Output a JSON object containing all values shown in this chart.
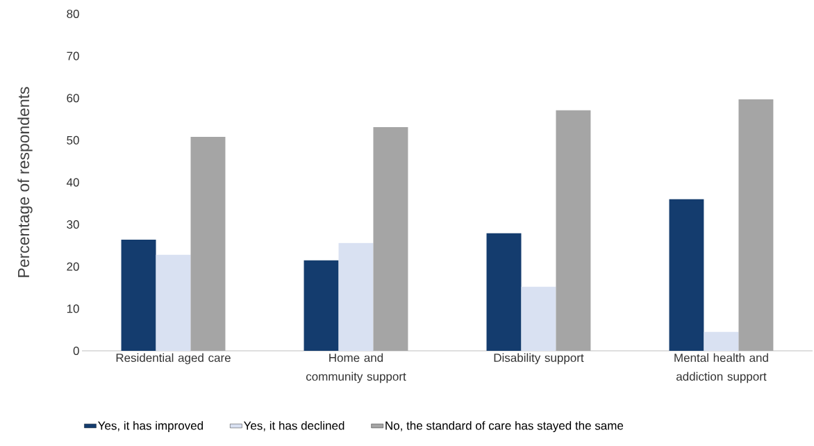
{
  "chart_data": {
    "type": "bar",
    "ylabel": "Percentage of respondents",
    "categories": [
      "Residential aged care",
      "Home and community support",
      "Disability support",
      "Mental health and addiction support"
    ],
    "series": [
      {
        "name": "Yes, it has improved",
        "color": "#143c6e",
        "values": [
          26.4,
          21.5,
          27.9,
          36.0
        ]
      },
      {
        "name": "Yes, it has declined",
        "color": "#d9e1f2",
        "values": [
          22.8,
          25.6,
          15.2,
          4.5
        ]
      },
      {
        "name": "No, the standard of care has stayed the same",
        "color": "#a5a5a5",
        "values": [
          50.8,
          53.1,
          57.1,
          59.7
        ]
      }
    ],
    "ylim": [
      0,
      80
    ],
    "yticks": [
      0,
      10,
      20,
      30,
      40,
      50,
      60,
      70,
      80
    ],
    "legend": "bottom"
  }
}
